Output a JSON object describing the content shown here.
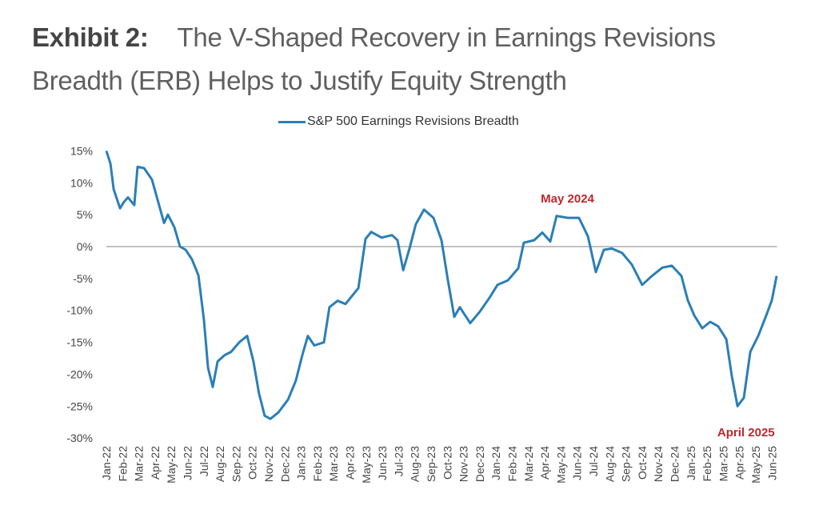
{
  "header": {
    "exhibit": "Exhibit 2:",
    "title": "The V-Shaped Recovery in Earnings Revisions Breadth (ERB) Helps to Justify Equity Strength"
  },
  "colors": {
    "line": "#2a7fb6",
    "annotation": "#c0262d",
    "zero_line": "#9e9e9e"
  },
  "chart_data": {
    "type": "line",
    "title": "The V-Shaped Recovery in Earnings Revisions Breadth (ERB) Helps to Justify Equity Strength",
    "xlabel": "",
    "ylabel": "",
    "ylim": [
      -30,
      15
    ],
    "yticks": [
      15,
      10,
      5,
      0,
      -5,
      -10,
      -15,
      -20,
      -25,
      -30
    ],
    "ytick_labels": [
      "15%",
      "10%",
      "5%",
      "0%",
      "-5%",
      "-10%",
      "-15%",
      "-20%",
      "-25%",
      "-30%"
    ],
    "x_unit": "months since Jan-22",
    "xlim": [
      0,
      41.3
    ],
    "categories": [
      "Jan-22",
      "Feb-22",
      "Mar-22",
      "Apr-22",
      "May-22",
      "Jun-22",
      "Jul-22",
      "Aug-22",
      "Sep-22",
      "Oct-22",
      "Nov-22",
      "Dec-22",
      "Jan-23",
      "Feb-23",
      "Mar-23",
      "Apr-23",
      "May-23",
      "Jun-23",
      "Jul-23",
      "Aug-23",
      "Sep-23",
      "Oct-23",
      "Nov-23",
      "Dec-23",
      "Jan-24",
      "Feb-24",
      "Mar-24",
      "Apr-24",
      "May-24",
      "Jun-24",
      "Jul-24",
      "Aug-24",
      "Sep-24",
      "Oct-24",
      "Nov-24",
      "Dec-24",
      "Jan-25",
      "Feb-25",
      "Mar-25",
      "Apr-25",
      "May-25",
      "Jun-25"
    ],
    "grid": false,
    "zero_line": true,
    "legend": {
      "position": "top-center",
      "entries": [
        "S&P 500 Earnings Revisions Breadth"
      ]
    },
    "series": [
      {
        "name": "S&P 500 Earnings Revisions Breadth",
        "x": [
          0,
          0.25,
          0.45,
          0.84,
          1.08,
          1.33,
          1.72,
          1.92,
          2.32,
          2.81,
          3.3,
          3.55,
          3.79,
          4.19,
          4.53,
          4.88,
          5.27,
          5.67,
          6.01,
          6.26,
          6.55,
          6.85,
          7.29,
          7.68,
          8.18,
          8.67,
          9.06,
          9.4,
          9.75,
          10.1,
          10.59,
          11.18,
          11.67,
          12.07,
          12.41,
          12.81,
          13.4,
          13.74,
          14.24,
          14.73,
          15.52,
          15.96,
          16.31,
          16.95,
          17.59,
          17.93,
          18.28,
          18.67,
          19.06,
          19.56,
          20.15,
          20.64,
          21.03,
          21.43,
          21.77,
          22.41,
          23.0,
          23.6,
          24.09,
          24.73,
          25.37,
          25.71,
          26.35,
          26.85,
          27.34,
          27.73,
          28.42,
          29.11,
          29.66,
          30.15,
          30.64,
          31.13,
          31.77,
          32.36,
          33.0,
          33.6,
          34.24,
          34.83,
          35.42,
          35.81,
          36.21,
          36.7,
          37.19,
          37.68,
          38.18,
          38.52,
          38.87,
          39.26,
          39.66,
          40.15,
          40.64,
          40.99,
          41.28
        ],
        "values": [
          15,
          13,
          9,
          6,
          7,
          7.7,
          6.5,
          12.5,
          12.3,
          10.5,
          6,
          3.7,
          5,
          3,
          0,
          -0.5,
          -2,
          -4.5,
          -11.5,
          -19,
          -22,
          -18,
          -17,
          -16.5,
          -15,
          -14,
          -18,
          -23,
          -26.5,
          -27,
          -26,
          -24,
          -21,
          -17,
          -14,
          -15.5,
          -15,
          -9.5,
          -8.5,
          -9,
          -6.5,
          1.2,
          2.3,
          1.4,
          1.8,
          1,
          -3.7,
          -0.3,
          3.5,
          5.8,
          4.5,
          1,
          -5.2,
          -11,
          -9.5,
          -12,
          -10.2,
          -8,
          -6,
          -5.3,
          -3.4,
          0.6,
          1,
          2.2,
          0.8,
          4.8,
          4.5,
          4.5,
          1.6,
          -4,
          -0.5,
          -0.3,
          -1,
          -2.8,
          -6,
          -4.6,
          -3.3,
          -3,
          -4.6,
          -8.4,
          -10.8,
          -12.8,
          -11.8,
          -12.5,
          -14.5,
          -20.3,
          -25,
          -23.7,
          -16.5,
          -14,
          -10.8,
          -8.4,
          -4.6
        ]
      }
    ],
    "annotations": [
      {
        "text": "May 2024",
        "x": 28.4,
        "y": 5
      },
      {
        "text": "April 2025",
        "x": 39.3,
        "y": -25.5
      }
    ]
  }
}
